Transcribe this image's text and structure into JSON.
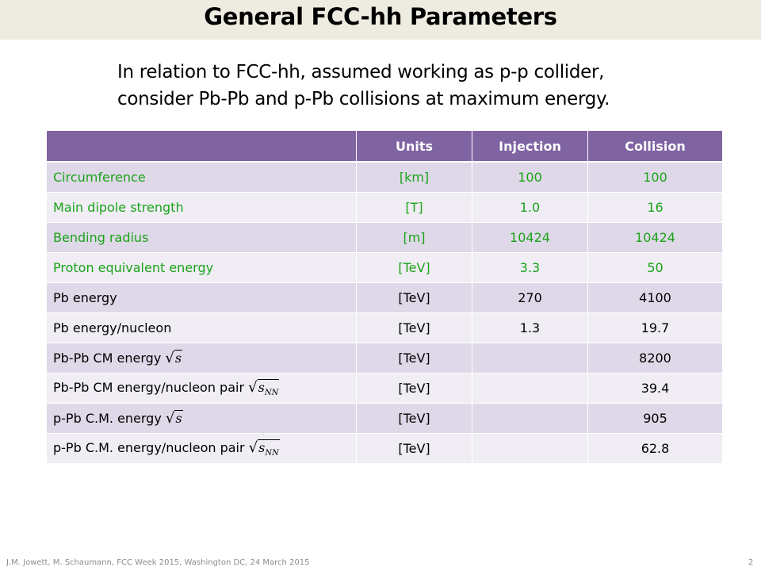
{
  "slide": {
    "title": "General FCC-hh Parameters",
    "subtitle_line1": "In relation to FCC-hh, assumed working as p-p collider,",
    "subtitle_line2": "consider Pb-Pb and p-Pb collisions at maximum energy.",
    "footer": "J.M. Jowett, M. Schaumann, FCC Week 2015, Washington DC, 24 March 2015",
    "page_number": "2"
  },
  "colors": {
    "header": "#8064a2",
    "row_odd": "#dfd8e8",
    "row_even": "#f0edf4",
    "green_text": "#1aa31a"
  },
  "table": {
    "headers": [
      "",
      "Units",
      "Injection",
      "Collision"
    ],
    "rows": [
      {
        "param": "Circumference",
        "units": "[km]",
        "injection": "100",
        "collision": "100"
      },
      {
        "param": "Main dipole strength",
        "units": "[T]",
        "injection": "1.0",
        "collision": "16"
      },
      {
        "param": "Bending radius",
        "units": "[m]",
        "injection": "10424",
        "collision": "10424"
      },
      {
        "param": "Proton equivalent energy",
        "units": "[TeV]",
        "injection": "3.3",
        "collision": "50"
      },
      {
        "param": "Pb energy",
        "units": "[TeV]",
        "injection": "270",
        "collision": "4100"
      },
      {
        "param": "Pb energy/nucleon",
        "units": "[TeV]",
        "injection": "1.3",
        "collision": "19.7"
      },
      {
        "param": "Pb-Pb CM energy ",
        "sqrt_arg": "s",
        "sqrt_sub": "",
        "units": "[TeV]",
        "injection": "",
        "collision": "8200"
      },
      {
        "param": "Pb-Pb CM energy/nucleon pair ",
        "sqrt_arg": "s",
        "sqrt_sub": "NN",
        "units": "[TeV]",
        "injection": "",
        "collision": "39.4"
      },
      {
        "param": "p-Pb C.M. energy ",
        "sqrt_arg": "s",
        "sqrt_sub": "",
        "units": "[TeV]",
        "injection": "",
        "collision": "905"
      },
      {
        "param": "p-Pb C.M. energy/nucleon pair ",
        "sqrt_arg": "s",
        "sqrt_sub": "NN",
        "units": "[TeV]",
        "injection": "",
        "collision": "62.8"
      }
    ]
  }
}
